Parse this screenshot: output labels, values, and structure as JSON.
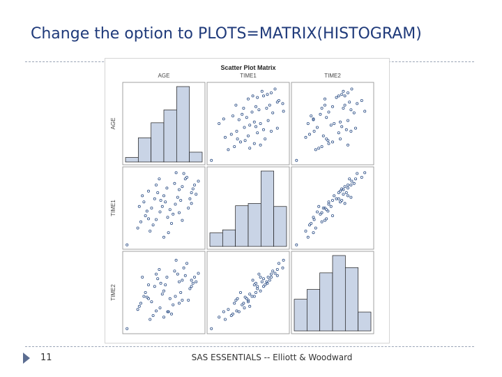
{
  "slide": {
    "title": "Change the option to PLOTS=MATRIX(HISTOGRAM)",
    "number": "11",
    "footer": "SAS ESSENTIALS -- Elliott & Woodward"
  },
  "colors": {
    "title": "#1f3a7a",
    "bar_fill": "#c9d4e6",
    "bar_stroke": "#1a1a1a",
    "point": "#2d4f86",
    "panel_border": "#8a8a8a"
  },
  "chart_data": {
    "type": "scatter",
    "title": "Scatter Plot Matrix",
    "variables": [
      "AGE",
      "TIME1",
      "TIME2"
    ],
    "header_labels": [
      "AGE",
      "TIME1",
      "TIME2"
    ],
    "row_labels": [
      "AGE",
      "TIME1",
      "TIME2"
    ],
    "diagonal": "histogram",
    "histograms": [
      {
        "variable": "AGE",
        "values": [
          0.06,
          0.32,
          0.52,
          0.69,
          1.0,
          0.13
        ]
      },
      {
        "variable": "TIME1",
        "values": [
          0.18,
          0.22,
          0.54,
          0.57,
          1.0,
          0.53
        ]
      },
      {
        "variable": "TIME2",
        "values": [
          0.42,
          0.55,
          0.77,
          1.0,
          0.84,
          0.25
        ]
      }
    ],
    "observations": [
      [
        0.82,
        0.5,
        0.4
      ],
      [
        0.84,
        0.62,
        0.55
      ],
      [
        0.86,
        0.7,
        0.58
      ],
      [
        0.88,
        0.75,
        0.62
      ],
      [
        0.9,
        0.8,
        0.7
      ],
      [
        0.95,
        0.85,
        0.75
      ],
      [
        0.78,
        0.88,
        0.72
      ],
      [
        0.76,
        0.95,
        0.82
      ],
      [
        0.74,
        0.78,
        0.66
      ],
      [
        0.7,
        0.74,
        0.64
      ],
      [
        0.72,
        0.6,
        0.5
      ],
      [
        0.65,
        0.55,
        0.45
      ],
      [
        0.62,
        0.42,
        0.34
      ],
      [
        0.6,
        0.3,
        0.22
      ],
      [
        0.58,
        0.48,
        0.42
      ],
      [
        0.55,
        0.38,
        0.25
      ],
      [
        0.52,
        0.58,
        0.6
      ],
      [
        0.5,
        0.66,
        0.52
      ],
      [
        0.48,
        0.52,
        0.48
      ],
      [
        0.45,
        0.45,
        0.3
      ],
      [
        0.42,
        0.7,
        0.68
      ],
      [
        0.4,
        0.35,
        0.26
      ],
      [
        0.38,
        0.62,
        0.58
      ],
      [
        0.36,
        0.28,
        0.2
      ],
      [
        0.34,
        0.5,
        0.38
      ],
      [
        0.32,
        0.2,
        0.15
      ],
      [
        0.3,
        0.72,
        0.6
      ],
      [
        0.28,
        0.46,
        0.44
      ],
      [
        0.26,
        0.4,
        0.5
      ],
      [
        0.24,
        0.58,
        0.45
      ],
      [
        0.22,
        0.66,
        0.7
      ],
      [
        0.2,
        0.32,
        0.36
      ],
      [
        0.18,
        0.52,
        0.32
      ],
      [
        0.16,
        0.24,
        0.28
      ],
      [
        0.64,
        0.82,
        0.78
      ],
      [
        0.68,
        0.64,
        0.74
      ],
      [
        0.8,
        0.9,
        0.88
      ],
      [
        0.86,
        0.56,
        0.66
      ],
      [
        0.56,
        0.18,
        0.25
      ],
      [
        0.44,
        0.88,
        0.8
      ],
      [
        0.66,
        0.96,
        0.92
      ],
      [
        0.74,
        0.34,
        0.4
      ],
      [
        0.7,
        0.44,
        0.36
      ],
      [
        0.54,
        0.76,
        0.7
      ],
      [
        0.5,
        0.12,
        0.18
      ],
      [
        0.92,
        0.68,
        0.64
      ],
      [
        0.46,
        0.6,
        0.62
      ],
      [
        0.4,
        0.8,
        0.74
      ],
      [
        0.3,
        0.36,
        0.42
      ],
      [
        0.02,
        0.02,
        0.03
      ]
    ]
  }
}
